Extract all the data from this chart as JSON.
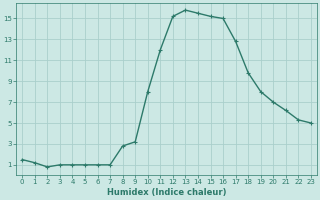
{
  "x": [
    0,
    1,
    2,
    3,
    4,
    5,
    6,
    7,
    8,
    9,
    10,
    11,
    12,
    13,
    14,
    15,
    16,
    17,
    18,
    19,
    20,
    21,
    22,
    23
  ],
  "y": [
    1.5,
    1.2,
    0.8,
    1.0,
    1.0,
    1.0,
    1.0,
    1.0,
    2.8,
    3.2,
    8.0,
    12.0,
    15.2,
    15.8,
    15.5,
    15.2,
    15.0,
    12.8,
    9.8,
    8.0,
    7.0,
    6.2,
    5.3,
    5.0
  ],
  "line_color": "#2d7a6a",
  "marker": "+",
  "marker_size": 3.5,
  "marker_linewidth": 0.8,
  "bg_color": "#cce8e4",
  "grid_color": "#aacfcc",
  "xlabel": "Humidex (Indice chaleur)",
  "ylim": [
    0,
    16.5
  ],
  "xlim": [
    -0.5,
    23.5
  ],
  "yticks": [
    1,
    3,
    5,
    7,
    9,
    11,
    13,
    15
  ],
  "xticks": [
    0,
    1,
    2,
    3,
    4,
    5,
    6,
    7,
    8,
    9,
    10,
    11,
    12,
    13,
    14,
    15,
    16,
    17,
    18,
    19,
    20,
    21,
    22,
    23
  ],
  "tick_fontsize": 5.0,
  "xlabel_fontsize": 6.0,
  "linewidth": 1.0
}
